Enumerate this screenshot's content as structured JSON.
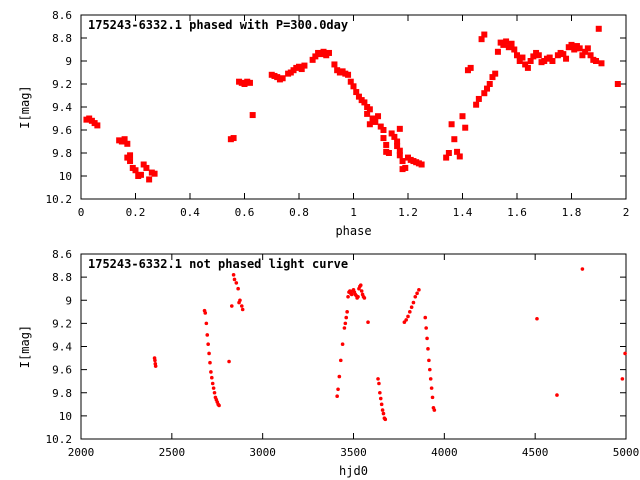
{
  "chart_data": [
    {
      "type": "scatter",
      "title": "175243-6332.1 phased with P=300.0day",
      "xlabel": "phase",
      "ylabel": "I[mag]",
      "xlim": [
        0,
        2
      ],
      "ylim": [
        10.2,
        8.6
      ],
      "y_inverted": true,
      "grid": false,
      "xticks": [
        0,
        0.2,
        0.4,
        0.6,
        0.8,
        1,
        1.2,
        1.4,
        1.6,
        1.8,
        2
      ],
      "xtick_labels": [
        "0",
        "0.2",
        "0.4",
        "0.6",
        "0.8",
        "1",
        "1.2",
        "1.4",
        "1.6",
        "1.8",
        "2"
      ],
      "yticks": [
        8.6,
        8.8,
        9,
        9.2,
        9.4,
        9.6,
        9.8,
        10,
        10.2
      ],
      "ytick_labels": [
        "8.6",
        "8.8",
        "9",
        "9.2",
        "9.4",
        "9.6",
        "9.8",
        "10",
        "10.2"
      ],
      "marker_color": "#ff0000",
      "series": [
        {
          "points": [
            [
              0.02,
              9.51
            ],
            [
              0.03,
              9.5
            ],
            [
              0.04,
              9.52
            ],
            [
              0.05,
              9.54
            ],
            [
              0.06,
              9.56
            ],
            [
              0.14,
              9.69
            ],
            [
              0.15,
              9.7
            ],
            [
              0.16,
              9.68
            ],
            [
              0.17,
              9.72
            ],
            [
              0.17,
              9.84
            ],
            [
              0.18,
              9.87
            ],
            [
              0.19,
              9.93
            ],
            [
              0.18,
              9.82
            ],
            [
              0.2,
              9.95
            ],
            [
              0.21,
              10.0
            ],
            [
              0.22,
              9.99
            ],
            [
              0.23,
              9.9
            ],
            [
              0.24,
              9.93
            ],
            [
              0.25,
              10.03
            ],
            [
              0.26,
              9.97
            ],
            [
              0.27,
              9.98
            ],
            [
              0.55,
              9.68
            ],
            [
              0.56,
              9.67
            ],
            [
              0.58,
              9.18
            ],
            [
              0.59,
              9.19
            ],
            [
              0.6,
              9.2
            ],
            [
              0.61,
              9.18
            ],
            [
              0.62,
              9.19
            ],
            [
              0.63,
              9.47
            ],
            [
              0.7,
              9.12
            ],
            [
              0.71,
              9.13
            ],
            [
              0.72,
              9.14
            ],
            [
              0.73,
              9.16
            ],
            [
              0.74,
              9.15
            ],
            [
              0.76,
              9.11
            ],
            [
              0.77,
              9.1
            ],
            [
              0.78,
              9.08
            ],
            [
              0.79,
              9.06
            ],
            [
              0.8,
              9.05
            ],
            [
              0.81,
              9.07
            ],
            [
              0.82,
              9.04
            ],
            [
              0.85,
              8.99
            ],
            [
              0.86,
              8.96
            ],
            [
              0.87,
              8.93
            ],
            [
              0.88,
              8.94
            ],
            [
              0.89,
              8.92
            ],
            [
              0.9,
              8.95
            ],
            [
              0.91,
              8.93
            ],
            [
              0.93,
              9.03
            ],
            [
              0.94,
              9.08
            ],
            [
              0.95,
              9.1
            ],
            [
              0.96,
              9.09
            ],
            [
              0.97,
              9.11
            ],
            [
              0.98,
              9.12
            ],
            [
              0.99,
              9.18
            ],
            [
              1.0,
              9.22
            ],
            [
              1.01,
              9.27
            ],
            [
              1.02,
              9.31
            ],
            [
              1.03,
              9.34
            ],
            [
              1.04,
              9.36
            ],
            [
              1.05,
              9.4
            ],
            [
              1.06,
              9.42
            ],
            [
              1.05,
              9.46
            ],
            [
              1.07,
              9.5
            ],
            [
              1.08,
              9.53
            ],
            [
              1.06,
              9.55
            ],
            [
              1.09,
              9.48
            ],
            [
              1.1,
              9.57
            ],
            [
              1.11,
              9.6
            ],
            [
              1.11,
              9.67
            ],
            [
              1.12,
              9.73
            ],
            [
              1.12,
              9.79
            ],
            [
              1.13,
              9.8
            ],
            [
              1.14,
              9.63
            ],
            [
              1.15,
              9.66
            ],
            [
              1.16,
              9.7
            ],
            [
              1.16,
              9.74
            ],
            [
              1.17,
              9.78
            ],
            [
              1.17,
              9.82
            ],
            [
              1.18,
              9.87
            ],
            [
              1.18,
              9.94
            ],
            [
              1.19,
              9.93
            ],
            [
              1.17,
              9.59
            ],
            [
              1.2,
              9.84
            ],
            [
              1.21,
              9.86
            ],
            [
              1.22,
              9.87
            ],
            [
              1.23,
              9.88
            ],
            [
              1.24,
              9.89
            ],
            [
              1.25,
              9.9
            ],
            [
              1.34,
              9.84
            ],
            [
              1.35,
              9.8
            ],
            [
              1.36,
              9.55
            ],
            [
              1.37,
              9.68
            ],
            [
              1.38,
              9.79
            ],
            [
              1.39,
              9.83
            ],
            [
              1.4,
              9.48
            ],
            [
              1.41,
              9.58
            ],
            [
              1.42,
              9.08
            ],
            [
              1.43,
              9.06
            ],
            [
              1.45,
              9.38
            ],
            [
              1.46,
              9.33
            ],
            [
              1.47,
              8.81
            ],
            [
              1.48,
              8.77
            ],
            [
              1.48,
              9.28
            ],
            [
              1.49,
              9.24
            ],
            [
              1.5,
              9.2
            ],
            [
              1.51,
              9.14
            ],
            [
              1.52,
              9.11
            ],
            [
              1.53,
              8.92
            ],
            [
              1.54,
              8.84
            ],
            [
              1.55,
              8.86
            ],
            [
              1.56,
              8.83
            ],
            [
              1.57,
              8.88
            ],
            [
              1.58,
              8.85
            ],
            [
              1.59,
              8.9
            ],
            [
              1.6,
              8.95
            ],
            [
              1.61,
              9.0
            ],
            [
              1.62,
              8.97
            ],
            [
              1.63,
              9.03
            ],
            [
              1.64,
              9.06
            ],
            [
              1.65,
              9.0
            ],
            [
              1.66,
              8.96
            ],
            [
              1.67,
              8.93
            ],
            [
              1.68,
              8.95
            ],
            [
              1.69,
              9.01
            ],
            [
              1.7,
              9.0
            ],
            [
              1.71,
              8.98
            ],
            [
              1.72,
              8.97
            ],
            [
              1.73,
              9.0
            ],
            [
              1.75,
              8.95
            ],
            [
              1.76,
              8.93
            ],
            [
              1.77,
              8.94
            ],
            [
              1.78,
              8.98
            ],
            [
              1.79,
              8.88
            ],
            [
              1.8,
              8.86
            ],
            [
              1.81,
              8.9
            ],
            [
              1.82,
              8.87
            ],
            [
              1.83,
              8.89
            ],
            [
              1.84,
              8.95
            ],
            [
              1.85,
              8.92
            ],
            [
              1.86,
              8.89
            ],
            [
              1.87,
              8.95
            ],
            [
              1.88,
              8.99
            ],
            [
              1.89,
              9.0
            ],
            [
              1.9,
              8.72
            ],
            [
              1.91,
              9.02
            ],
            [
              1.97,
              9.2
            ]
          ]
        }
      ]
    },
    {
      "type": "scatter",
      "title": "175243-6332.1 not phased light curve",
      "xlabel": "hjd0",
      "ylabel": "I[mag]",
      "xlim": [
        2000,
        5000
      ],
      "ylim": [
        10.2,
        8.6
      ],
      "y_inverted": true,
      "grid": false,
      "xticks": [
        2000,
        2500,
        3000,
        3500,
        4000,
        4500,
        5000
      ],
      "xtick_labels": [
        "2000",
        "2500",
        "3000",
        "3500",
        "4000",
        "4500",
        "5000"
      ],
      "yticks": [
        8.6,
        8.8,
        9,
        9.2,
        9.4,
        9.6,
        9.8,
        10,
        10.2
      ],
      "ytick_labels": [
        "8.6",
        "8.8",
        "9",
        "9.2",
        "9.4",
        "9.6",
        "9.8",
        "10",
        "10.2"
      ],
      "marker_color": "#ff0000",
      "series": [
        {
          "points": [
            [
              2405,
              9.5
            ],
            [
              2407,
              9.52
            ],
            [
              2409,
              9.55
            ],
            [
              2411,
              9.57
            ],
            [
              2680,
              9.09
            ],
            [
              2684,
              9.11
            ],
            [
              2690,
              9.2
            ],
            [
              2695,
              9.3
            ],
            [
              2700,
              9.38
            ],
            [
              2705,
              9.46
            ],
            [
              2710,
              9.54
            ],
            [
              2715,
              9.62
            ],
            [
              2720,
              9.67
            ],
            [
              2725,
              9.72
            ],
            [
              2730,
              9.76
            ],
            [
              2735,
              9.8
            ],
            [
              2740,
              9.84
            ],
            [
              2745,
              9.86
            ],
            [
              2750,
              9.88
            ],
            [
              2755,
              9.9
            ],
            [
              2760,
              9.91
            ],
            [
              2815,
              9.53
            ],
            [
              2830,
              9.05
            ],
            [
              2840,
              8.78
            ],
            [
              2845,
              8.82
            ],
            [
              2855,
              8.85
            ],
            [
              2865,
              8.9
            ],
            [
              2870,
              9.02
            ],
            [
              2875,
              9.0
            ],
            [
              2885,
              9.05
            ],
            [
              2890,
              9.08
            ],
            [
              3410,
              9.83
            ],
            [
              3415,
              9.77
            ],
            [
              3422,
              9.66
            ],
            [
              3430,
              9.52
            ],
            [
              3440,
              9.38
            ],
            [
              3450,
              9.24
            ],
            [
              3455,
              9.2
            ],
            [
              3460,
              9.15
            ],
            [
              3465,
              9.1
            ],
            [
              3470,
              8.97
            ],
            [
              3475,
              8.93
            ],
            [
              3480,
              8.92
            ],
            [
              3485,
              8.94
            ],
            [
              3490,
              8.95
            ],
            [
              3495,
              8.92
            ],
            [
              3500,
              8.91
            ],
            [
              3505,
              8.93
            ],
            [
              3510,
              8.95
            ],
            [
              3515,
              8.96
            ],
            [
              3520,
              8.98
            ],
            [
              3525,
              8.97
            ],
            [
              3530,
              8.9
            ],
            [
              3535,
              8.88
            ],
            [
              3540,
              8.87
            ],
            [
              3545,
              8.92
            ],
            [
              3550,
              8.95
            ],
            [
              3555,
              8.97
            ],
            [
              3560,
              8.98
            ],
            [
              3580,
              9.19
            ],
            [
              3635,
              9.68
            ],
            [
              3640,
              9.72
            ],
            [
              3645,
              9.8
            ],
            [
              3650,
              9.85
            ],
            [
              3655,
              9.9
            ],
            [
              3660,
              9.95
            ],
            [
              3665,
              9.98
            ],
            [
              3670,
              10.02
            ],
            [
              3675,
              10.03
            ],
            [
              3780,
              9.19
            ],
            [
              3790,
              9.17
            ],
            [
              3800,
              9.14
            ],
            [
              3810,
              9.1
            ],
            [
              3820,
              9.06
            ],
            [
              3830,
              9.02
            ],
            [
              3840,
              8.97
            ],
            [
              3850,
              8.94
            ],
            [
              3860,
              8.91
            ],
            [
              3895,
              9.15
            ],
            [
              3900,
              9.24
            ],
            [
              3905,
              9.33
            ],
            [
              3910,
              9.42
            ],
            [
              3915,
              9.52
            ],
            [
              3920,
              9.6
            ],
            [
              3925,
              9.68
            ],
            [
              3930,
              9.76
            ],
            [
              3935,
              9.84
            ],
            [
              3940,
              9.93
            ],
            [
              3945,
              9.95
            ],
            [
              4510,
              9.16
            ],
            [
              4620,
              9.82
            ],
            [
              4760,
              8.73
            ],
            [
              4980,
              9.68
            ],
            [
              4995,
              9.46
            ]
          ]
        }
      ]
    }
  ]
}
